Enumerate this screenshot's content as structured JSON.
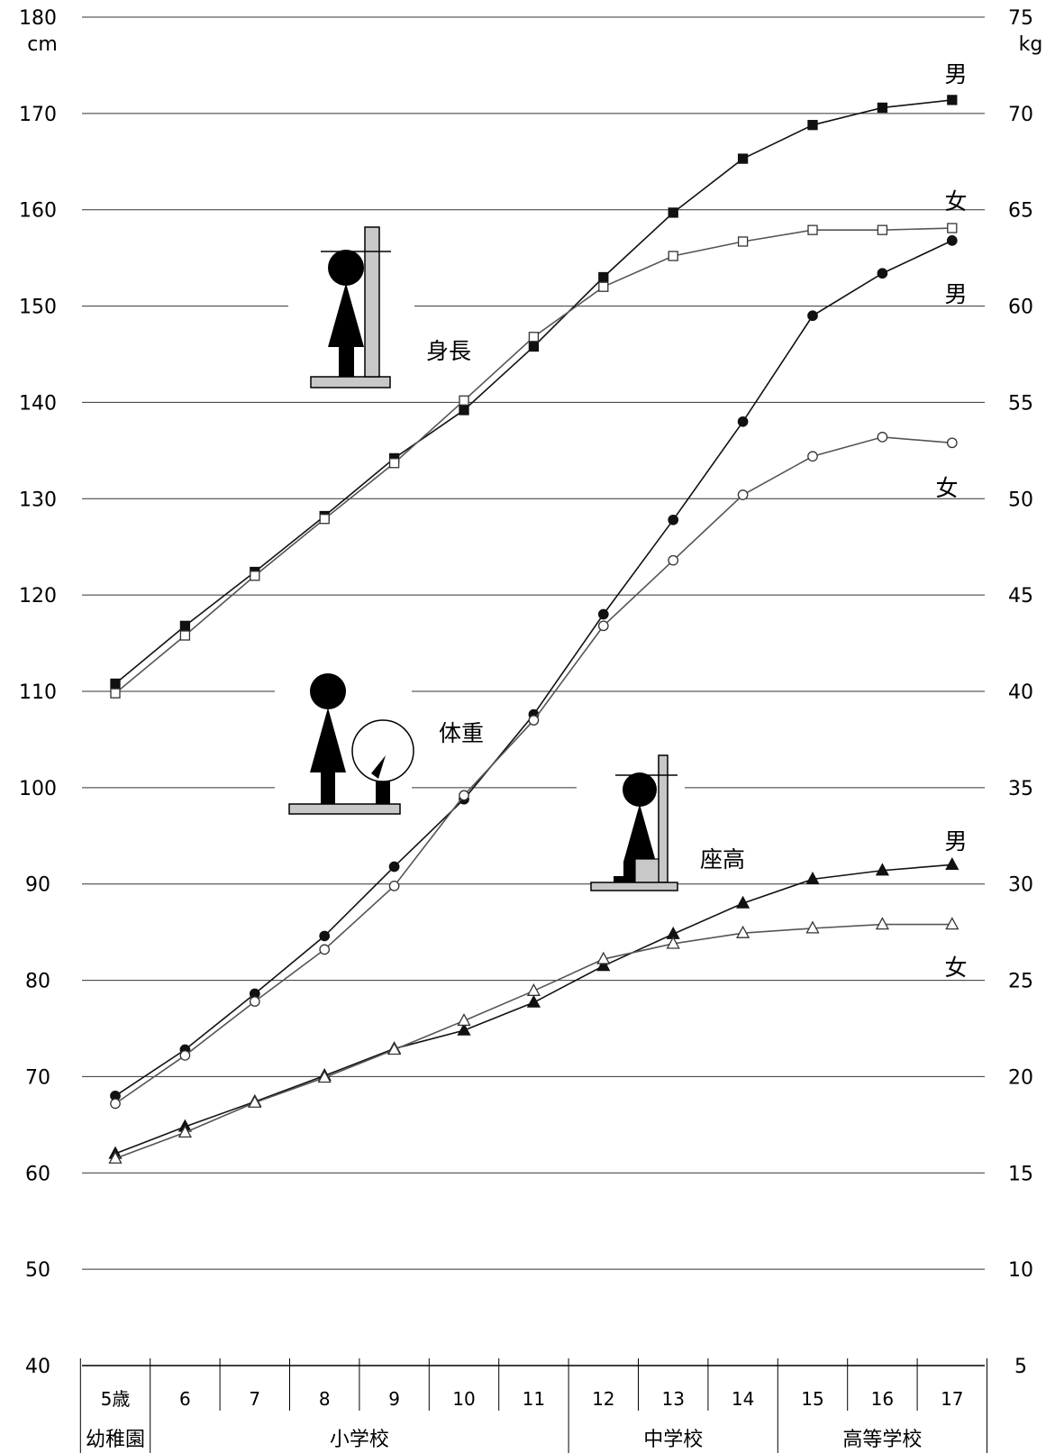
{
  "chart_data": {
    "type": "line",
    "x": [
      "5歳",
      "6",
      "7",
      "8",
      "9",
      "10",
      "11",
      "12",
      "13",
      "14",
      "15",
      "16",
      "17"
    ],
    "school_levels": [
      {
        "label": "幼稚園",
        "from": 0,
        "to": 0
      },
      {
        "label": "小学校",
        "from": 1,
        "to": 6
      },
      {
        "label": "中学校",
        "from": 7,
        "to": 9
      },
      {
        "label": "高等学校",
        "from": 10,
        "to": 12
      }
    ],
    "left_axis": {
      "unit": "cm",
      "ylim": [
        40,
        180
      ],
      "ticks": [
        40,
        50,
        60,
        70,
        80,
        90,
        100,
        110,
        120,
        130,
        140,
        150,
        160,
        170,
        180
      ]
    },
    "right_axis": {
      "unit": "kg",
      "ylim": [
        5,
        75
      ],
      "ticks": [
        5,
        10,
        15,
        20,
        25,
        30,
        35,
        40,
        45,
        50,
        55,
        60,
        65,
        70,
        75
      ]
    },
    "grid": true,
    "groups": [
      {
        "label": "身長",
        "axis": "left",
        "marker": "square",
        "series": [
          {
            "name": "男",
            "filled": true,
            "values": [
              110.8,
              116.8,
              122.4,
              128.2,
              134.2,
              139.2,
              145.8,
              153.0,
              159.7,
              165.3,
              168.8,
              170.6,
              171.4
            ]
          },
          {
            "name": "女",
            "filled": false,
            "values": [
              109.8,
              115.8,
              122.0,
              127.9,
              133.7,
              140.2,
              146.8,
              152.0,
              155.2,
              156.7,
              157.9,
              157.9,
              158.1
            ]
          }
        ]
      },
      {
        "label": "体重",
        "axis": "right",
        "marker": "circle",
        "series": [
          {
            "name": "男",
            "filled": true,
            "values": [
              19.0,
              21.4,
              24.3,
              27.3,
              30.9,
              34.4,
              38.8,
              44.0,
              48.9,
              54.0,
              59.5,
              61.7,
              63.4
            ]
          },
          {
            "name": "女",
            "filled": false,
            "values": [
              18.6,
              21.1,
              23.9,
              26.6,
              29.9,
              34.6,
              38.5,
              43.4,
              46.8,
              50.2,
              52.2,
              53.2,
              52.9
            ]
          }
        ]
      },
      {
        "label": "座高",
        "axis": "left",
        "marker": "triangle",
        "series": [
          {
            "name": "男",
            "filled": true,
            "values": [
              62.0,
              64.8,
              67.4,
              70.1,
              72.9,
              74.8,
              77.7,
              81.5,
              84.8,
              88.0,
              90.5,
              91.4,
              92.0
            ]
          },
          {
            "name": "女",
            "filled": false,
            "values": [
              61.5,
              64.2,
              67.3,
              69.9,
              72.8,
              75.8,
              78.9,
              82.2,
              83.8,
              84.9,
              85.4,
              85.8,
              85.8
            ]
          }
        ]
      }
    ]
  }
}
